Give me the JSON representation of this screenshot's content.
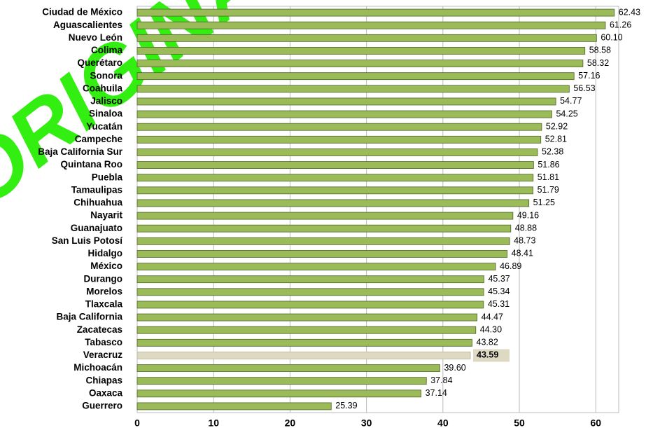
{
  "chart_data": {
    "type": "hbar",
    "watermark": "ORIGINAL",
    "categories": [
      "Ciudad de México",
      "Aguascalientes",
      "Nuevo León",
      "Colima",
      "Querétaro",
      "Sonora",
      "Coahuila",
      "Jalisco",
      "Sinaloa",
      "Yucatán",
      "Campeche",
      "Baja California Sur",
      "Quintana Roo",
      "Puebla",
      "Tamaulipas",
      "Chihuahua",
      "Nayarit",
      "Guanajuato",
      "San Luis Potosí",
      "Hidalgo",
      "México",
      "Durango",
      "Morelos",
      "Tlaxcala",
      "Baja California",
      "Zacatecas",
      "Tabasco",
      "Veracruz",
      "Michoacán",
      "Chiapas",
      "Oaxaca",
      "Guerrero"
    ],
    "values": [
      62.43,
      61.26,
      60.1,
      58.58,
      58.32,
      57.16,
      56.53,
      54.77,
      54.25,
      52.92,
      52.81,
      52.38,
      51.86,
      51.81,
      51.79,
      51.25,
      49.16,
      48.88,
      48.73,
      48.41,
      46.89,
      45.37,
      45.34,
      45.31,
      44.47,
      44.3,
      43.82,
      43.59,
      39.6,
      37.84,
      37.14,
      25.39
    ],
    "value_labels": [
      "62.43",
      "61.26",
      "60.10",
      "58.58",
      "58.32",
      "57.16",
      "56.53",
      "54.77",
      "54.25",
      "52.92",
      "52.81",
      "52.38",
      "51.86",
      "51.81",
      "51.79",
      "51.25",
      "49.16",
      "48.88",
      "48.73",
      "48.41",
      "46.89",
      "45.37",
      "45.34",
      "45.31",
      "44.47",
      "44.30",
      "43.82",
      "43.59",
      "39.60",
      "37.84",
      "37.14",
      "25.39"
    ],
    "color": "#9bbb59",
    "colors": [
      "#9bbb59",
      "#9bbb59",
      "#9bbb59",
      "#9bbb59",
      "#9bbb59",
      "#9bbb59",
      "#9bbb59",
      "#9bbb59",
      "#9bbb59",
      "#9bbb59",
      "#9bbb59",
      "#9bbb59",
      "#9bbb59",
      "#9bbb59",
      "#9bbb59",
      "#9bbb59",
      "#9bbb59",
      "#9bbb59",
      "#9bbb59",
      "#9bbb59",
      "#9bbb59",
      "#9bbb59",
      "#9bbb59",
      "#9bbb59",
      "#9bbb59",
      "#9bbb59",
      "#9bbb59",
      "#ddd9c3",
      "#9bbb59",
      "#9bbb59",
      "#9bbb59",
      "#9bbb59"
    ],
    "xlim": [
      0,
      63
    ],
    "xticks": [
      0,
      10,
      20,
      30,
      40,
      50,
      60
    ],
    "grid": true
  }
}
